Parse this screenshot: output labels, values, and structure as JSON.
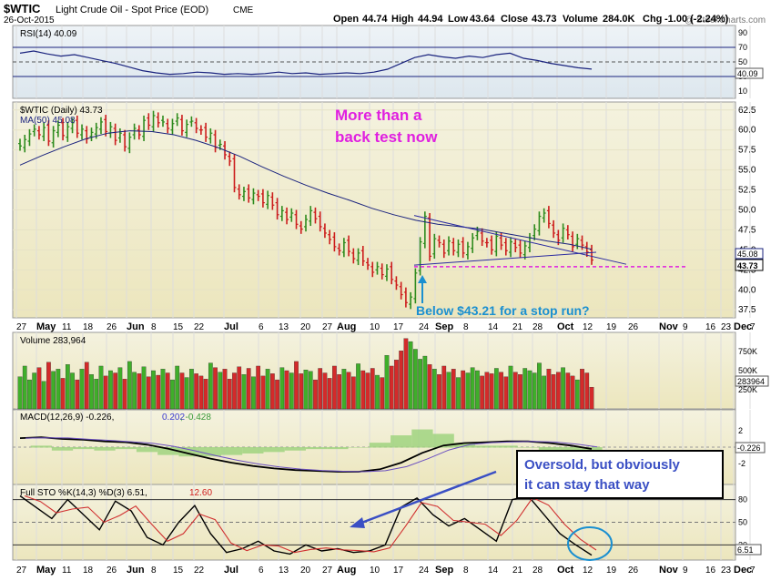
{
  "header": {
    "symbol": "$WTIC",
    "name": "Light Crude Oil - Spot Price (EOD)",
    "exchange": "CME",
    "date": "26-Oct-2015",
    "watermark": "@ StockCharts.com",
    "quote": {
      "open_label": "Open",
      "open": "44.74",
      "high_label": "High",
      "high": "44.94",
      "low_label": "Low",
      "low": "43.64",
      "close_label": "Close",
      "close": "43.73",
      "volume_label": "Volume",
      "volume": "284.0K",
      "chg_label": "Chg",
      "chg": "-1.00 (-2.24%)"
    }
  },
  "colors": {
    "up": "#2e8b1e",
    "down": "#cc1c1c",
    "annotation_magenta": "#e020e0",
    "annotation_cyan": "#1a8fd0",
    "panel_bg": "#f3efd2",
    "ma_line": "#1a237e"
  },
  "panels": {
    "rsi": {
      "legend": "RSI(14) 40.09",
      "value_tag": "40.09",
      "ticks": [
        "90",
        "70",
        "50",
        "30",
        "10"
      ]
    },
    "price": {
      "legend_symbol": "$WTIC (Daily) 43.73",
      "legend_ma": "MA(50) 45.08",
      "ma_tag": "45.08",
      "close_tag": "43.73",
      "ticks": [
        "62.5",
        "60.0",
        "57.5",
        "55.0",
        "52.5",
        "50.0",
        "47.5",
        "45.0",
        "42.5",
        "40.0",
        "37.5"
      ]
    },
    "volume": {
      "legend": "Volume 283,964",
      "value_tag": "283964",
      "ticks": [
        "750K",
        "500K",
        "250K"
      ]
    },
    "macd": {
      "legend_main": "MACD(12,26,9) -0.226,",
      "legend_signal": "0.202",
      "legend_hist": ", -0.428",
      "value_tag": "-0.226",
      "ticks": [
        "2",
        "0",
        "-2"
      ]
    },
    "sto": {
      "legend_main": "Full STO %K(14,3) %D(3) 6.51,",
      "legend_d": "12.60",
      "value_tag": "6.51",
      "ticks": [
        "80",
        "50",
        "20"
      ]
    }
  },
  "x_axis": {
    "labels": [
      "27",
      "May",
      "11",
      "18",
      "26",
      "Jun",
      "8",
      "15",
      "22",
      "Jul",
      "6",
      "13",
      "20",
      "27",
      "Aug",
      "10",
      "17",
      "24",
      "Sep",
      "8",
      "14",
      "21",
      "28",
      "Oct",
      "12",
      "19",
      "26",
      "Nov",
      "9",
      "16",
      "23",
      "Dec",
      "7"
    ]
  },
  "annotations": {
    "top_line1": "More than a",
    "top_line2": "back test now",
    "stop_run": "Below $43.21 for a stop run?",
    "box_line1": "Oversold, but obviously",
    "box_line2": "it can stay that way"
  },
  "chart_data": {
    "type": "ohlc",
    "series": [
      {
        "name": "$WTIC (Daily)",
        "values": [
          58.0,
          58.8,
          59.5,
          60.1,
          59.4,
          60.3,
          58.6,
          59.9,
          60.6,
          59.3,
          60.4,
          60.9,
          59.6,
          60.1,
          58.9,
          59.7,
          60.3,
          61.0,
          59.8,
          60.4,
          58.7,
          59.6,
          57.9,
          59.1,
          60.2,
          59.4,
          61.2,
          60.6,
          61.8,
          60.9,
          61.0,
          60.2,
          60.8,
          61.5,
          59.9,
          60.7,
          61.1,
          60.2,
          60.0,
          59.1,
          59.6,
          57.8,
          58.2,
          56.9,
          56.1,
          52.8,
          51.9,
          52.3,
          51.5,
          52.1,
          51.7,
          50.9,
          51.8,
          50.6,
          49.4,
          49.9,
          48.8,
          49.6,
          48.2,
          47.6,
          48.8,
          49.9,
          48.9,
          47.9,
          47.1,
          46.3,
          45.4,
          44.9,
          45.9,
          44.8,
          43.9,
          44.6,
          43.6,
          43.1,
          42.2,
          42.9,
          41.9,
          42.6,
          41.3,
          40.6,
          39.4,
          38.4,
          39.1,
          42.1,
          46.0,
          49.2,
          44.2,
          46.4,
          45.9,
          44.6,
          46.1,
          44.9,
          45.7,
          44.6,
          45.4,
          46.5,
          47.3,
          46.1,
          45.9,
          45.0,
          46.7,
          45.6,
          44.9,
          46.0,
          45.3,
          44.6,
          45.5,
          46.5,
          47.6,
          49.2,
          49.6,
          48.3,
          47.1,
          46.2,
          47.7,
          46.9,
          45.4,
          46.4,
          45.6,
          44.73,
          43.73
        ]
      },
      {
        "name": "MA(50)",
        "values": [
          55.6,
          56.8,
          57.9,
          58.9,
          59.6,
          59.9,
          59.8,
          59.4,
          58.7,
          57.8,
          56.7,
          55.4,
          54.2,
          53.1,
          52.1,
          51.2,
          50.2,
          49.4,
          48.7,
          48.2,
          47.9,
          47.6,
          47.1,
          46.6,
          46.1,
          45.7,
          45.08
        ]
      },
      {
        "name": "Volume",
        "values": [
          420,
          560,
          380,
          470,
          540,
          360,
          610,
          490,
          520,
          400,
          580,
          470,
          380,
          520,
          610,
          450,
          390,
          560,
          430,
          500,
          470,
          540,
          390,
          620,
          480,
          460,
          550,
          420,
          500,
          440,
          520,
          470,
          380,
          560,
          470,
          410,
          520,
          460,
          430,
          390,
          600,
          540,
          480,
          520,
          390,
          470,
          550,
          450,
          530,
          420,
          560,
          430,
          520,
          460,
          380,
          540,
          500,
          470,
          620,
          460,
          510,
          490,
          380,
          530,
          470,
          400,
          560,
          450,
          520,
          480,
          420,
          590,
          500,
          470,
          530,
          440,
          410,
          700,
          560,
          640,
          760,
          920,
          880,
          780,
          650,
          690,
          580,
          520,
          450,
          560,
          480,
          520,
          410,
          500,
          470,
          540,
          500,
          430,
          480,
          460,
          530,
          480,
          420,
          560,
          480,
          450,
          530,
          500,
          470,
          600,
          430,
          520,
          450,
          480,
          540,
          470,
          430,
          380,
          520,
          470,
          284
        ]
      },
      {
        "name": "RSI(14)",
        "values": [
          62,
          65,
          61,
          58,
          60,
          56,
          52,
          48,
          43,
          38,
          35,
          33,
          34,
          36,
          35,
          33,
          34,
          33,
          34,
          36,
          34,
          35,
          33,
          34,
          35,
          34,
          36,
          40,
          48,
          56,
          60,
          57,
          55,
          58,
          56,
          60,
          62,
          55,
          52,
          48,
          45,
          42,
          40.09
        ]
      },
      {
        "name": "MACD(12,26,9)",
        "values": [
          1.1,
          1.2,
          1.0,
          0.9,
          0.7,
          0.6,
          0.3,
          -0.2,
          -0.8,
          -1.4,
          -1.9,
          -2.3,
          -2.6,
          -2.8,
          -2.9,
          -3.0,
          -3.0,
          -2.7,
          -1.9,
          -0.7,
          0.2,
          0.5,
          0.6,
          0.7,
          0.7,
          0.5,
          0.2,
          -0.226
        ]
      },
      {
        "name": "Full STO %K",
        "values": [
          85,
          70,
          55,
          80,
          60,
          40,
          78,
          65,
          30,
          20,
          50,
          72,
          35,
          10,
          15,
          25,
          12,
          8,
          20,
          12,
          15,
          10,
          12,
          20,
          70,
          82,
          60,
          45,
          55,
          40,
          25,
          80,
          85,
          60,
          35,
          20,
          6.51
        ]
      }
    ]
  }
}
